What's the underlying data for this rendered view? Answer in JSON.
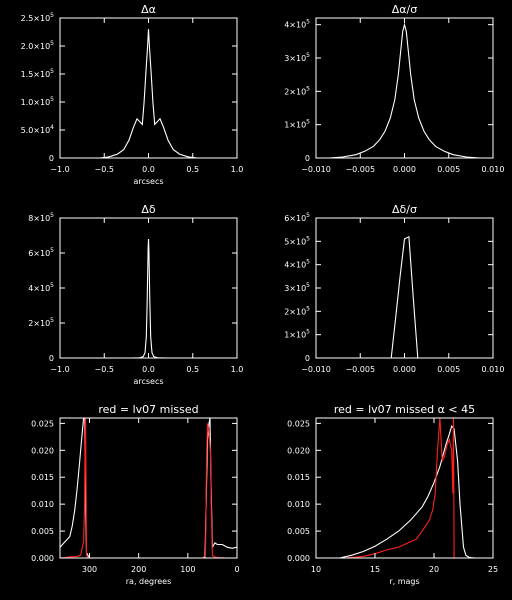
{
  "chart_data": [
    {
      "type": "line",
      "title": "Δα",
      "xlabel": "arcsecs",
      "ylabel": "",
      "xlim": [
        -1.0,
        1.0
      ],
      "ylim": [
        0,
        250000
      ],
      "xreverse": false,
      "xticks": [
        -1.0,
        -0.5,
        0.0,
        0.5,
        1.0
      ],
      "xtick_labels": [
        "−1.0",
        "−0.5",
        "0.0",
        "0.5",
        "1.0"
      ],
      "yticks": [
        0,
        50000,
        100000,
        150000,
        200000,
        250000
      ],
      "ytick_labels": [
        [
          "0",
          ""
        ],
        [
          "5.0×10",
          "4"
        ],
        [
          "1.0×10",
          "5"
        ],
        [
          "1.5×10",
          "5"
        ],
        [
          "2.0×10",
          "5"
        ],
        [
          "2.5×10",
          "5"
        ]
      ],
      "series": [
        {
          "color": "#ffffff",
          "x": [
            -0.55,
            -0.45,
            -0.35,
            -0.28,
            -0.22,
            -0.17,
            -0.13,
            -0.1,
            -0.07,
            -0.05,
            -0.03,
            -0.01,
            0.0,
            0.01,
            0.03,
            0.05,
            0.07,
            0.1,
            0.13,
            0.17,
            0.22,
            0.28,
            0.35,
            0.45,
            0.55
          ],
          "y": [
            0,
            2000,
            7000,
            15000,
            32000,
            55000,
            70000,
            65000,
            60000,
            100000,
            150000,
            200000,
            230000,
            200000,
            150000,
            100000,
            60000,
            65000,
            70000,
            55000,
            32000,
            15000,
            7000,
            2000,
            0
          ]
        }
      ]
    },
    {
      "type": "line",
      "title": "Δα/σ",
      "xlabel": "",
      "ylabel": "",
      "xlim": [
        -0.01,
        0.01
      ],
      "ylim": [
        0,
        420000
      ],
      "xreverse": false,
      "xticks": [
        -0.01,
        -0.005,
        0.0,
        0.005,
        0.01
      ],
      "xtick_labels": [
        "−0.010",
        "−0.005",
        "0.000",
        "0.005",
        "0.010"
      ],
      "yticks": [
        0,
        100000,
        200000,
        300000,
        400000
      ],
      "ytick_labels": [
        [
          "0",
          ""
        ],
        [
          "1×10",
          "5"
        ],
        [
          "2×10",
          "5"
        ],
        [
          "3×10",
          "5"
        ],
        [
          "4×10",
          "5"
        ]
      ],
      "series": [
        {
          "color": "#ffffff",
          "x": [
            -0.0085,
            -0.007,
            -0.0055,
            -0.0045,
            -0.0035,
            -0.0028,
            -0.0022,
            -0.0016,
            -0.0011,
            -0.0007,
            -0.0004,
            -0.0002,
            0.0,
            0.0002,
            0.0004,
            0.0007,
            0.0011,
            0.0016,
            0.0022,
            0.0028,
            0.0035,
            0.0045,
            0.0055,
            0.007,
            0.0085
          ],
          "y": [
            0,
            3000,
            10000,
            20000,
            35000,
            55000,
            80000,
            120000,
            175000,
            250000,
            330000,
            380000,
            400000,
            380000,
            330000,
            250000,
            175000,
            120000,
            80000,
            55000,
            35000,
            20000,
            10000,
            3000,
            0
          ]
        }
      ]
    },
    {
      "type": "line",
      "title": "Δδ",
      "xlabel": "arcsecs",
      "ylabel": "",
      "xlim": [
        -1.0,
        1.0
      ],
      "ylim": [
        0,
        800000
      ],
      "xreverse": false,
      "xticks": [
        -1.0,
        -0.5,
        0.0,
        0.5,
        1.0
      ],
      "xtick_labels": [
        "−1.0",
        "−0.5",
        "0.0",
        "0.5",
        "1.0"
      ],
      "yticks": [
        0,
        200000,
        400000,
        600000,
        800000
      ],
      "ytick_labels": [
        [
          "0",
          ""
        ],
        [
          "2×10",
          "5"
        ],
        [
          "4×10",
          "5"
        ],
        [
          "6×10",
          "5"
        ],
        [
          "8×10",
          "5"
        ]
      ],
      "series": [
        {
          "color": "#ffffff",
          "x": [
            -0.2,
            -0.1,
            -0.06,
            -0.04,
            -0.025,
            -0.015,
            -0.005,
            0.0,
            0.005,
            0.015,
            0.025,
            0.04,
            0.06,
            0.1,
            0.2
          ],
          "y": [
            0,
            1000,
            8000,
            30000,
            120000,
            330000,
            620000,
            680000,
            620000,
            330000,
            120000,
            30000,
            8000,
            1000,
            0
          ]
        }
      ]
    },
    {
      "type": "line",
      "title": "Δδ/σ",
      "xlabel": "",
      "ylabel": "",
      "xlim": [
        -0.01,
        0.01
      ],
      "ylim": [
        0,
        600000
      ],
      "xreverse": false,
      "xticks": [
        -0.01,
        -0.005,
        0.0,
        0.005,
        0.01
      ],
      "xtick_labels": [
        "−0.010",
        "−0.005",
        "0.000",
        "0.005",
        "0.010"
      ],
      "yticks": [
        0,
        100000,
        200000,
        300000,
        400000,
        500000,
        600000
      ],
      "ytick_labels": [
        [
          "0",
          ""
        ],
        [
          "1×10",
          "5"
        ],
        [
          "2×10",
          "5"
        ],
        [
          "3×10",
          "5"
        ],
        [
          "4×10",
          "5"
        ],
        [
          "5×10",
          "5"
        ],
        [
          "6×10",
          "5"
        ]
      ],
      "series": [
        {
          "color": "#ffffff",
          "x": [
            -0.0015,
            -0.001,
            -0.0005,
            0.0,
            0.0005,
            0.001,
            0.0015
          ],
          "y": [
            0,
            170000,
            350000,
            510000,
            520000,
            250000,
            0
          ]
        }
      ]
    },
    {
      "type": "line",
      "title": "red = lv07 missed",
      "xlabel": "ra, degrees",
      "ylabel": "",
      "xlim": [
        360,
        0
      ],
      "ylim": [
        0,
        0.026
      ],
      "xreverse": true,
      "xticks": [
        300,
        200,
        100,
        0
      ],
      "xtick_labels": [
        "300",
        "200",
        "100",
        "0"
      ],
      "yticks": [
        0,
        0.005,
        0.01,
        0.015,
        0.02,
        0.025
      ],
      "ytick_labels": [
        [
          "0.000",
          ""
        ],
        [
          "0.005",
          ""
        ],
        [
          "0.010",
          ""
        ],
        [
          "0.015",
          ""
        ],
        [
          "0.020",
          ""
        ],
        [
          "0.025",
          ""
        ]
      ],
      "series": [
        {
          "color": "#ffffff",
          "x": [
            360,
            355,
            350,
            345,
            340,
            335,
            330,
            325,
            320,
            316,
            314,
            312,
            310,
            308,
            306,
            300,
            250,
            200,
            150,
            100,
            70,
            65,
            60,
            57,
            55,
            53,
            50,
            45,
            40,
            30,
            20,
            10,
            0
          ],
          "y": [
            0.002,
            0.0025,
            0.003,
            0.0035,
            0.004,
            0.006,
            0.009,
            0.013,
            0.018,
            0.022,
            0.024,
            0.026,
            0.026,
            0.01,
            0.001,
            0,
            0,
            0,
            0,
            0,
            0,
            0.0002,
            0.022,
            0.025,
            0.026,
            0.015,
            0.002,
            0.0028,
            0.0025,
            0.0025,
            0.002,
            0.0018,
            0.002
          ]
        },
        {
          "color": "#ff2020",
          "x": [
            360,
            340,
            325,
            318,
            312,
            310,
            309,
            308,
            306,
            304,
            300,
            250,
            200,
            150,
            100,
            70,
            64,
            62,
            60,
            58,
            56,
            54,
            52,
            50,
            48,
            46,
            40,
            20,
            0
          ],
          "y": [
            0,
            0.0002,
            0.0003,
            0.0005,
            0.003,
            0.01,
            0.026,
            0.026,
            0.0005,
            0.0002,
            0,
            0,
            0,
            0,
            0,
            0,
            0.0005,
            0.018,
            0.025,
            0.024,
            0.022,
            0.02,
            0.008,
            0.0005,
            0.0003,
            0.0002,
            0.0001,
            0,
            0
          ]
        }
      ]
    },
    {
      "type": "line",
      "title": "red = lv07 missed α < 45",
      "xlabel": "r, mags",
      "ylabel": "",
      "xlim": [
        10,
        25
      ],
      "ylim": [
        0,
        0.026
      ],
      "xreverse": false,
      "xticks": [
        10,
        15,
        20,
        25
      ],
      "xtick_labels": [
        "10",
        "15",
        "20",
        "25"
      ],
      "yticks": [
        0,
        0.005,
        0.01,
        0.015,
        0.02,
        0.025
      ],
      "ytick_labels": [
        [
          "0.000",
          ""
        ],
        [
          "0.005",
          ""
        ],
        [
          "0.010",
          ""
        ],
        [
          "0.015",
          ""
        ],
        [
          "0.020",
          ""
        ],
        [
          "0.025",
          ""
        ]
      ],
      "series": [
        {
          "color": "#ffffff",
          "x": [
            12.0,
            13,
            14,
            15,
            16,
            17,
            18,
            19,
            19.5,
            20,
            20.5,
            21,
            21.3,
            21.5,
            21.7,
            22.0,
            22.2,
            22.5,
            22.7,
            23,
            23.5
          ],
          "y": [
            0,
            0.0005,
            0.0012,
            0.0022,
            0.0035,
            0.005,
            0.007,
            0.0095,
            0.0115,
            0.014,
            0.017,
            0.021,
            0.023,
            0.0245,
            0.024,
            0.018,
            0.01,
            0.002,
            0.0005,
            0.0001,
            0
          ]
        },
        {
          "color": "#ff2020",
          "x": [
            12.5,
            14,
            15,
            16,
            17,
            17.5,
            18,
            18.5,
            19,
            19.3,
            19.6,
            19.9,
            20.1,
            20.3,
            20.5,
            20.7,
            20.9,
            21.1,
            21.3,
            21.5,
            21.6,
            21.65,
            21.7,
            21.8
          ],
          "y": [
            0,
            0.0003,
            0.0008,
            0.0015,
            0.002,
            0.0025,
            0.003,
            0.0035,
            0.005,
            0.006,
            0.007,
            0.009,
            0.012,
            0.02,
            0.026,
            0.018,
            0.019,
            0.021,
            0.022,
            0.02,
            0.012,
            0.026,
            0,
            0
          ]
        }
      ]
    }
  ]
}
